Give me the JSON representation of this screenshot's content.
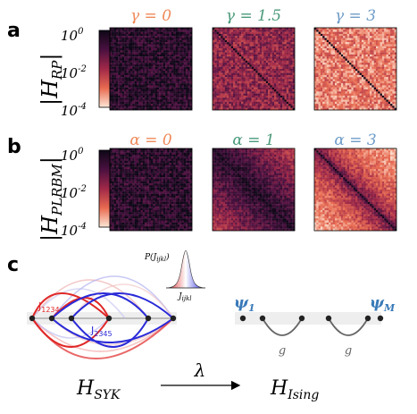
{
  "panels": {
    "a": "a",
    "b": "b",
    "c": "c"
  },
  "row_a": {
    "ylabel_main": "|H",
    "ylabel_sub": "RP",
    "ylabel_close": "|",
    "ticks": [
      {
        "base": "10",
        "exp": "0"
      },
      {
        "base": "10",
        "exp": "-2"
      },
      {
        "base": "10",
        "exp": "-4"
      }
    ],
    "titles": [
      {
        "text": "γ = 0",
        "color": "#ef8a5a"
      },
      {
        "text": "γ = 1.5",
        "color": "#4a9a7a"
      },
      {
        "text": "γ = 3",
        "color": "#6f9cc8"
      }
    ]
  },
  "row_b": {
    "ylabel_main": "|H",
    "ylabel_sub": "PLRBM",
    "ylabel_close": "|",
    "ticks": [
      {
        "base": "10",
        "exp": "0"
      },
      {
        "base": "10",
        "exp": "-2"
      },
      {
        "base": "10",
        "exp": "-4"
      }
    ],
    "titles": [
      {
        "text": "α = 0",
        "color": "#ef8a5a"
      },
      {
        "text": "α = 1",
        "color": "#4a9a7a"
      },
      {
        "text": "α = 3",
        "color": "#6f9cc8"
      }
    ]
  },
  "panel_c": {
    "dist_label": "P(J",
    "dist_label_sub": "ijkl",
    "dist_label_close": ")",
    "dist_axis": "J",
    "dist_axis_sub": "ijkl",
    "j1": "J",
    "j1_sub": "1234",
    "j2": "J",
    "j2_sub": "2345",
    "psi1": "ψ",
    "psi1_sub": "1",
    "psiM": "ψ",
    "psiM_sub": "M",
    "g1": "g",
    "g2": "g",
    "h_syk": "H",
    "h_syk_sub": "SYK",
    "lambda": "λ",
    "h_ising": "H",
    "h_ising_sub": "Ising",
    "colors": {
      "red": "#e02828",
      "blue": "#2a2ad8",
      "psi": "#3a7ab8"
    }
  }
}
